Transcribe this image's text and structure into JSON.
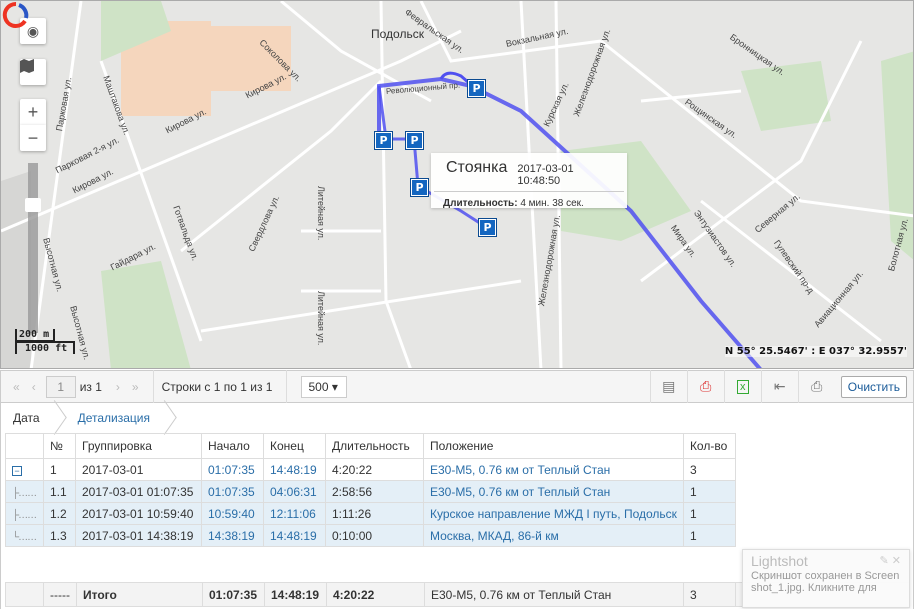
{
  "map": {
    "city_label": "Подольск",
    "streets": [
      "Кирова ул.",
      "Кирова ул.",
      "Кирова ул.",
      "Парковая 2-я ул.",
      "Парковая ул.",
      "Маштакова ул.",
      "Соколова ул.",
      "Готвальда ул.",
      "Гайдара ул.",
      "Свердлова ул.",
      "Литейная ул.",
      "Литейная ул.",
      "Высотная ул.",
      "Высотная ул.",
      "Вокзальная ул.",
      "Курская ул.",
      "Железнодорожная ул.",
      "Железнодорожная ул.",
      "Бронницкая ул.",
      "Рощинская ул.",
      "Северная ул.",
      "Энтузиастов ул.",
      "Мира ул.",
      "Гулевский пр-д",
      "Авиационная ул.",
      "Болотная ул.",
      "Февральская ул.",
      "Революционный пр."
    ],
    "scale_metric": "200 m",
    "scale_imperial": "1000 ft",
    "coordinates": "N 55° 25.5467' : E 037° 32.9557'",
    "parking_marker": "P",
    "track_color": "#5050f0",
    "popup": {
      "title": "Стоянка",
      "datetime": "2017-03-01 10:48:50",
      "duration_label": "Длительность:",
      "duration_value": "4 мин. 38 сек."
    },
    "controls": {
      "zoom_in": "+",
      "zoom_out": "−"
    }
  },
  "toolbar": {
    "first": "«",
    "prev": "‹",
    "page": "1",
    "of": "из 1",
    "next": "›",
    "last": "»",
    "rows_info": "Строки с 1 по 1 из 1",
    "page_size": "500",
    "clear": "Очистить"
  },
  "breadcrumb": [
    "Дата",
    "Детализация"
  ],
  "table": {
    "headers": [
      "№",
      "Группировка",
      "Начало",
      "Конец",
      "Длительность",
      "Положение",
      "Кол-во"
    ],
    "rows": [
      [
        "1",
        "2017-03-01",
        "01:07:35",
        "14:48:19",
        "4:20:22",
        "E30-M5, 0.76 км от Теплый Стан",
        "3"
      ],
      [
        "1.1",
        "2017-03-01 01:07:35",
        "01:07:35",
        "04:06:31",
        "2:58:56",
        "E30-M5, 0.76 км от Теплый Стан",
        "1"
      ],
      [
        "1.2",
        "2017-03-01 10:59:40",
        "10:59:40",
        "12:11:06",
        "1:11:26",
        "Курское направление МЖД I путь, Подольск",
        "1"
      ],
      [
        "1.3",
        "2017-03-01 14:38:19",
        "14:38:19",
        "14:48:19",
        "0:10:00",
        "Москва, МКАД, 86-й км",
        "1"
      ]
    ],
    "total": [
      "-----",
      "Итого",
      "01:07:35",
      "14:48:19",
      "4:20:22",
      "E30-M5, 0.76 км от Теплый Стан",
      "3"
    ]
  },
  "lightshot": {
    "title": "Lightshot",
    "message": "Скриншот сохранен в Screenshot_1.jpg. Кликните для"
  }
}
